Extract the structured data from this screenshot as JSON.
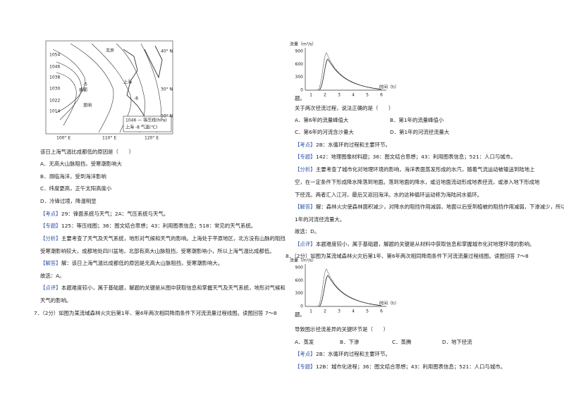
{
  "left": {
    "map": {
      "isobars": [
        "1054",
        "1046",
        "1038",
        "1030",
        "1022",
        "1014"
      ],
      "cities": [
        "北京",
        "上海",
        "成都",
        "昆明"
      ],
      "lat": [
        "40° N",
        "30° N",
        "20° N"
      ],
      "lon": [
        "100° E",
        "110° E",
        "120° E"
      ],
      "temps": [
        "-5",
        "-8"
      ],
      "legend": [
        "1046 — 等压线(hPa)",
        "上海 -8 气温(℃)"
      ]
    },
    "question": "该日上海气温比成都低的原因是（　　）",
    "options": [
      "A．无高大山脉阻挡，受寒潮影响大",
      "B．濒临海洋，受到海洋影响",
      "C．纬度更高，正午太阳高度小",
      "D．冷锋过境，降温明显"
    ],
    "point": {
      "tag": "【考点】",
      "text": "29：锋面系统与天气；2A：气压系统与天气。"
    },
    "topic": {
      "tag": "【专题】",
      "text": "125：等压线图；36：图文结合思想；43：利用图表信息；518：常见的天气系统。"
    },
    "analysis": {
      "tag": "【分析】",
      "lines": [
        "主要考查了天气及天气系统，地形对气候和天气的影响。上海处于平原地区，北方没有山脉的阻挡",
        "受寒潮影响较大，成都地处四川盆地，北部有高大山脉阻挡，受寒潮影响小，所以上海气温比成都低。"
      ]
    },
    "answer": {
      "tag": "【解答】",
      "text": "解：该日上海气温比成都低的原因是无高大山脉阻挡，受寒潮影响大。"
    },
    "choice": "故选：A。",
    "comment": {
      "tag": "【点评】",
      "lines": [
        "本题难度较小，属于基础题，解题的关键是从图中获取信息和掌握天气及天气系统，地形对气候和",
        "天气的影响。"
      ]
    },
    "q7": "7．（2分）如图为某流域森林火灾后第1年、第6年两次相同降雨条件下河流流量过程线图。读图回答 7～8"
  },
  "right": {
    "graph": {
      "ylabel": "流量（m³/s）",
      "yticks": [
        "900",
        "600",
        "300",
        "0"
      ],
      "xticks": [
        "1",
        "2",
        "3",
        "4",
        "5",
        "6"
      ],
      "xlabel": "时间（h）"
    },
    "q7_end": "题。",
    "question": "关于两次径流过程，说法正确的是（　　）",
    "options": [
      "A．第6年的流量峰值大",
      "B．第1年的流量峰值小",
      "C．第6年的河流含沙量大",
      "D．第1年的河流径流量大"
    ],
    "point": {
      "tag": "【考点】",
      "text": "2B：水循环的过程和主要环节。"
    },
    "topic": {
      "tag": "【专题】",
      "text": "142：地理图像材料题；36：图文结合思想；43：利用图表信息；521：人口与城市。"
    },
    "analysis": {
      "tag": "【分析】",
      "lines": [
        "主要考查了城市化对地理环境的影响，海洋表面蒸发形成的水汽，随着气流运动被输送到陆地上",
        "空，在一定条件下形成降水降落到地面。落到地面的降水，或沿地面流动形成地表径流，或渗入地下形成地",
        "下径流。两者汇入江河，最后又返回海洋。水的这种循环运动称为海陆间水循环。"
      ]
    },
    "answer": {
      "tag": "【解答】",
      "lines": [
        "解：森林火灾使森林面积减少，对降水的阻挡作用减弱，地面以后受到植被的阻挡作用减弱，下渗减少，所以第",
        "1年的河流径流量大。"
      ]
    },
    "choice": "故选：D。",
    "comment": {
      "tag": "【点评】",
      "text": "本题难度较小，属于基础题，解题的关键是从材料中获取信息和掌握城市化对地理环境的影响。"
    },
    "q8": "8．（2分）如图为某流域森林火灾后第1年、第6年两次相同降雨条件下河流流量过程线图。读图回答 7～8",
    "q8_end": "题。",
    "question8": "导致图示径流差异的关键环节是（　　）",
    "options8": [
      "A．蒸发",
      "B．下渗",
      "C．蒸腾",
      "D．地下径流"
    ],
    "point8": {
      "tag": "【考点】",
      "text": "2B：水循环的过程和主要环节。"
    },
    "topic8": {
      "tag": "【专题】",
      "text": "12B：城市化进程；36：图文结合思想；43：利用图表信息；521：人口与城市。"
    }
  }
}
